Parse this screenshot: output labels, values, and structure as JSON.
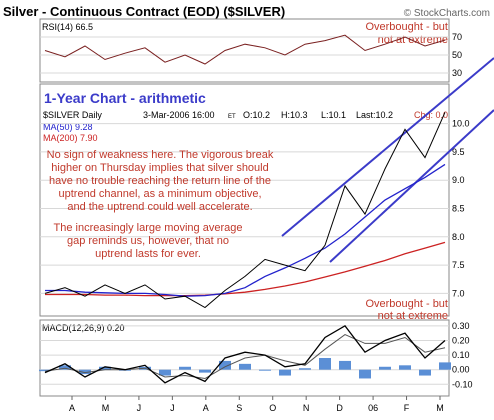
{
  "chart_data": {
    "type": "line",
    "title": "Silver - Continuous Contract (EOD) ($SILVER)",
    "watermark": "© StockCharts.com",
    "main_panel": {
      "symbol_label": "$SILVER Daily",
      "quote": {
        "date": "3-Mar-2006 16:00",
        "tz": "ET",
        "open": "O:10.2",
        "high": "H:10.3",
        "low": "L:10.1",
        "last": "Last:10.2",
        "chg": "Chg: 0.0"
      },
      "heading": "1-Year Chart - arithmetic",
      "ylim": [
        6.6,
        10.7
      ],
      "y_ticks": [
        "10.0",
        "9.5",
        "9.0",
        "8.5",
        "8.0",
        "7.5",
        "7.0"
      ],
      "y_tick_values": [
        10.0,
        9.5,
        9.0,
        8.5,
        8.0,
        7.5,
        7.0
      ],
      "series": [
        {
          "name": "MA(50) 9.28",
          "color": "#2222cc",
          "values": [
            7.05,
            7.05,
            7.02,
            7.01,
            7.0,
            7.0,
            6.98,
            6.95,
            6.96,
            7.0,
            7.1,
            7.3,
            7.45,
            7.62,
            7.8,
            8.05,
            8.35,
            8.65,
            8.85,
            9.05,
            9.28
          ]
        },
        {
          "name": "MA(200) 7.90",
          "color": "#cc2222",
          "values": [
            6.98,
            6.98,
            6.98,
            6.97,
            6.97,
            6.96,
            6.96,
            6.96,
            6.97,
            6.99,
            7.02,
            7.07,
            7.13,
            7.2,
            7.29,
            7.38,
            7.48,
            7.58,
            7.7,
            7.8,
            7.9
          ]
        },
        {
          "name": "Price",
          "color": "#000000",
          "values": [
            7.0,
            7.1,
            6.95,
            7.15,
            7.0,
            7.15,
            6.9,
            6.95,
            6.75,
            7.05,
            7.3,
            7.6,
            7.5,
            7.4,
            7.85,
            8.9,
            8.4,
            9.2,
            9.9,
            9.4,
            10.2
          ]
        }
      ],
      "annotations": {
        "overbought_1": "Overbought - but",
        "overbought_2": "not at extreme",
        "c1": "No sign of weakness here. The vigorous break",
        "c2": "higher on Thursday implies that silver should",
        "c3": "have no trouble reaching the return line of the",
        "c4": "uptrend channel, as a minimum objective,",
        "c5": "and the uptrend could well accelerate.",
        "g1": "The increasingly large moving average",
        "g2": "gap reminds us, however, that no",
        "g3": "uptrend lasts for ever."
      }
    },
    "rsi_panel": {
      "label": "RSI(14) 66.5",
      "ylim": [
        20,
        90
      ],
      "y_ticks": [
        "70",
        "50",
        "30"
      ],
      "y_tick_values": [
        70,
        50,
        30
      ],
      "values": [
        55,
        48,
        60,
        45,
        52,
        58,
        42,
        50,
        40,
        55,
        62,
        58,
        50,
        62,
        66,
        72,
        55,
        62,
        70,
        60,
        66.5
      ]
    },
    "macd_panel": {
      "label": "MACD(12,26,9) 0.20",
      "ylim": [
        -0.18,
        0.34
      ],
      "y_ticks": [
        "0.30",
        "0.20",
        "0.10",
        "0.00",
        "-0.10"
      ],
      "y_tick_values": [
        0.3,
        0.2,
        0.1,
        0.0,
        -0.1
      ],
      "annotation_1": "Overbought - but",
      "annotation_2": "not at extreme",
      "macd": [
        -0.02,
        0.04,
        -0.05,
        0.02,
        0.0,
        0.03,
        -0.09,
        -0.02,
        -0.08,
        0.08,
        0.12,
        0.1,
        0.02,
        0.04,
        0.22,
        0.3,
        0.12,
        0.2,
        0.25,
        0.08,
        0.2
      ],
      "signal": [
        -0.01,
        0.01,
        -0.02,
        0.0,
        0.0,
        0.01,
        -0.05,
        -0.04,
        -0.06,
        0.02,
        0.08,
        0.1,
        0.06,
        0.03,
        0.14,
        0.24,
        0.18,
        0.18,
        0.22,
        0.12,
        0.15
      ]
    },
    "x_ticks": [
      "A",
      "M",
      "J",
      "J",
      "A",
      "S",
      "O",
      "N",
      "D",
      "06",
      "F",
      "M"
    ]
  }
}
